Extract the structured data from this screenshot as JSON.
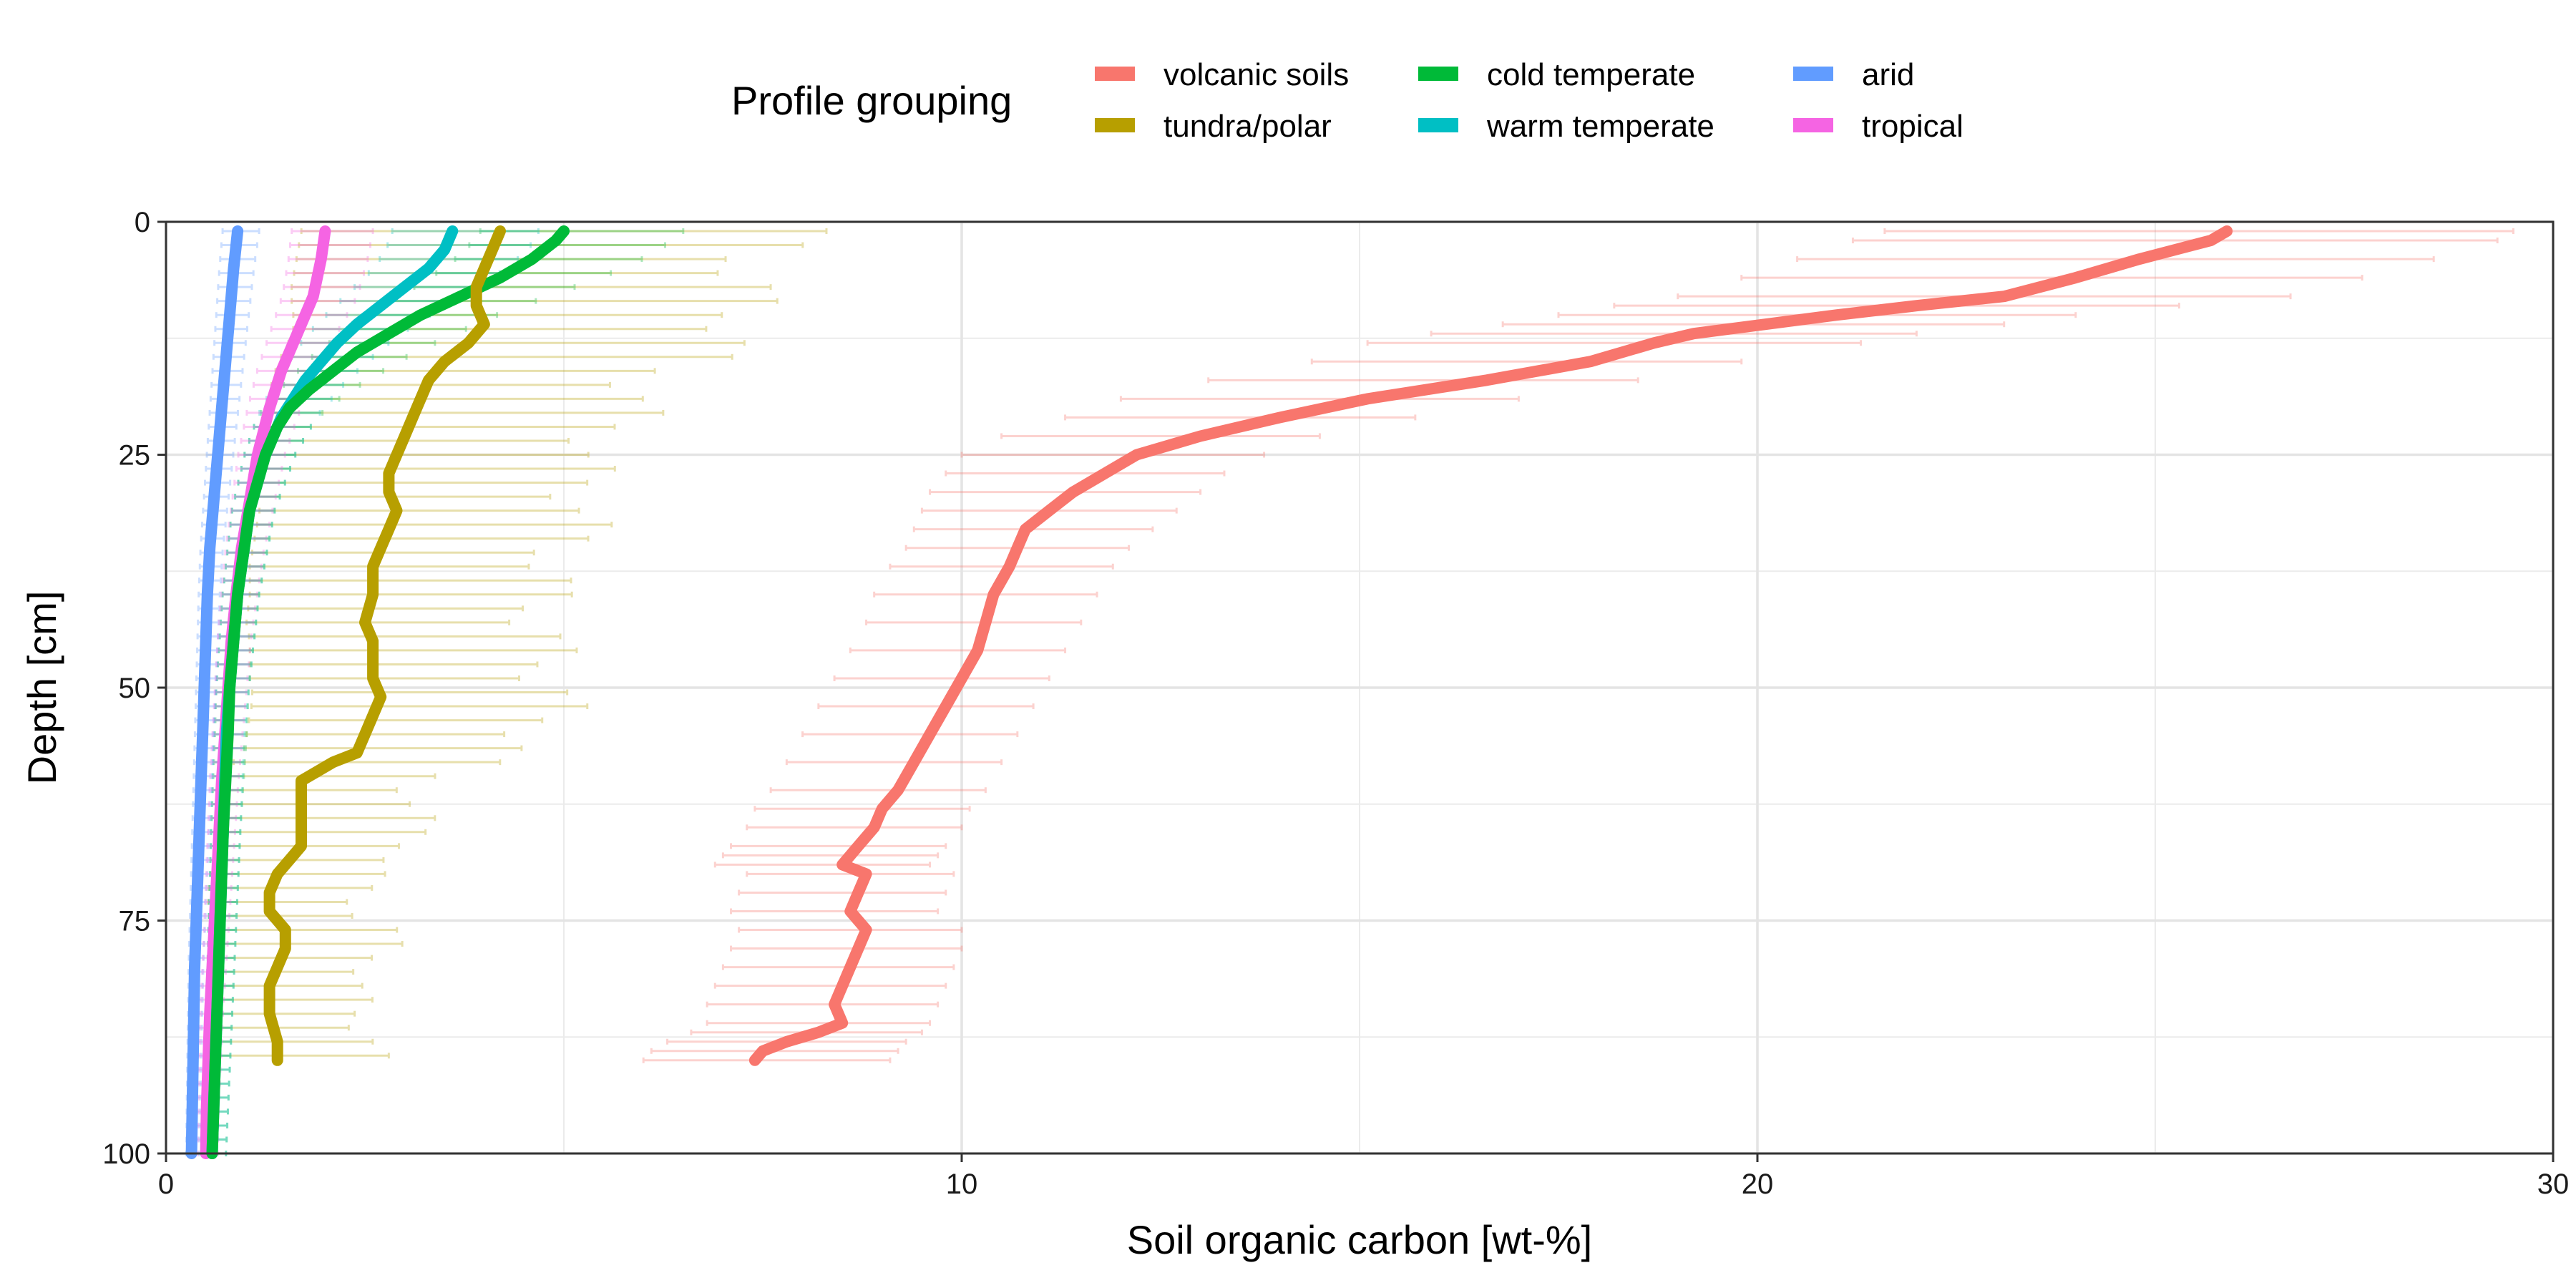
{
  "chart_data": {
    "type": "line",
    "xlabel": "Soil organic carbon [wt-%]",
    "ylabel": "Depth [cm]",
    "xlim": [
      0,
      30
    ],
    "ylim": [
      0,
      100
    ],
    "y_reversed": true,
    "xticks": [
      0,
      10,
      20,
      30
    ],
    "yticks": [
      0,
      25,
      50,
      75,
      100
    ],
    "grid": true,
    "legend": {
      "title": "Profile grouping",
      "position": "top",
      "entries": [
        "volcanic soils",
        "tundra/polar",
        "cold temperate",
        "warm temperate",
        "arid",
        "tropical"
      ]
    },
    "series": [
      {
        "name": "volcanic soils",
        "color": "#F8766D",
        "depth": [
          1,
          2,
          4,
          6,
          8,
          9,
          10,
          11,
          12,
          13,
          15,
          17,
          19,
          21,
          23,
          25,
          27,
          29,
          31,
          33,
          35,
          37,
          40,
          43,
          46,
          49,
          52,
          55,
          58,
          61,
          63,
          65,
          67,
          68,
          69,
          70,
          72,
          74,
          76,
          78,
          80,
          82,
          84,
          86,
          87,
          88,
          89,
          90
        ],
        "values": [
          25.9,
          25.7,
          24.8,
          24.0,
          23.1,
          22.0,
          21.0,
          20.1,
          19.2,
          18.7,
          17.9,
          16.6,
          15.1,
          14.0,
          13.0,
          12.2,
          11.8,
          11.4,
          11.1,
          10.8,
          10.7,
          10.6,
          10.4,
          10.3,
          10.2,
          10.0,
          9.8,
          9.6,
          9.4,
          9.2,
          9.0,
          8.9,
          8.7,
          8.6,
          8.5,
          8.8,
          8.7,
          8.6,
          8.8,
          8.7,
          8.6,
          8.5,
          8.4,
          8.5,
          8.2,
          7.8,
          7.5,
          7.4
        ],
        "err_low": [
          21.6,
          21.2,
          20.5,
          19.8,
          19.0,
          18.2,
          17.5,
          16.8,
          15.9,
          15.1,
          14.4,
          13.1,
          12.0,
          11.3,
          10.5,
          10.0,
          9.8,
          9.6,
          9.5,
          9.4,
          9.3,
          9.1,
          8.9,
          8.8,
          8.6,
          8.4,
          8.2,
          8.0,
          7.8,
          7.6,
          7.4,
          7.3,
          7.1,
          7.0,
          6.9,
          7.3,
          7.2,
          7.1,
          7.2,
          7.1,
          7.0,
          6.9,
          6.8,
          6.8,
          6.6,
          6.3,
          6.1,
          6.0
        ],
        "err_high": [
          29.5,
          29.3,
          28.5,
          27.6,
          26.7,
          25.3,
          24.0,
          23.1,
          22.0,
          21.3,
          19.8,
          18.5,
          17.0,
          15.7,
          14.5,
          13.8,
          13.3,
          13.0,
          12.7,
          12.4,
          12.1,
          11.9,
          11.7,
          11.5,
          11.3,
          11.1,
          10.9,
          10.7,
          10.5,
          10.3,
          10.1,
          10.0,
          9.8,
          9.7,
          9.6,
          9.9,
          9.8,
          9.7,
          10.0,
          10.0,
          9.9,
          9.8,
          9.7,
          9.6,
          9.5,
          9.3,
          9.2,
          9.1
        ]
      },
      {
        "name": "tundra/polar",
        "color": "#B79F00",
        "depth": [
          1,
          3,
          5,
          7,
          9,
          11,
          13,
          15,
          17,
          19,
          21,
          23,
          25,
          27,
          29,
          31,
          33,
          35,
          37,
          40,
          43,
          45,
          47,
          49,
          51,
          53,
          55,
          57,
          58,
          59,
          60,
          62,
          65,
          67,
          68,
          70,
          72,
          74,
          76,
          78,
          80,
          82,
          85,
          88,
          90
        ],
        "values": [
          4.2,
          4.1,
          4.0,
          3.9,
          3.9,
          4.0,
          3.8,
          3.5,
          3.3,
          3.2,
          3.1,
          3.0,
          2.9,
          2.8,
          2.8,
          2.9,
          2.8,
          2.7,
          2.6,
          2.6,
          2.5,
          2.6,
          2.6,
          2.6,
          2.7,
          2.6,
          2.5,
          2.4,
          2.1,
          1.9,
          1.7,
          1.7,
          1.7,
          1.7,
          1.6,
          1.4,
          1.3,
          1.3,
          1.5,
          1.5,
          1.4,
          1.3,
          1.3,
          1.4,
          1.4
        ]
      },
      {
        "name": "cold temperate",
        "color": "#00BA38",
        "depth": [
          1,
          2,
          4,
          6,
          8,
          10,
          12,
          14,
          16,
          18,
          20,
          22,
          25,
          28,
          31,
          34,
          37,
          40,
          45,
          50,
          55,
          60,
          65,
          70,
          75,
          80,
          85,
          90,
          95,
          100
        ],
        "values": [
          5.0,
          4.9,
          4.6,
          4.2,
          3.7,
          3.2,
          2.8,
          2.4,
          2.1,
          1.8,
          1.55,
          1.4,
          1.25,
          1.15,
          1.05,
          1.0,
          0.95,
          0.9,
          0.85,
          0.8,
          0.78,
          0.75,
          0.72,
          0.7,
          0.68,
          0.66,
          0.64,
          0.62,
          0.6,
          0.58
        ]
      },
      {
        "name": "warm temperate",
        "color": "#00BFC4",
        "depth": [
          1,
          3,
          5,
          7,
          9,
          11,
          13,
          15,
          17,
          19,
          21,
          23,
          25,
          28,
          31,
          34,
          37,
          40,
          45,
          50,
          55,
          60,
          65,
          70,
          75,
          80,
          85,
          90,
          95,
          100
        ],
        "values": [
          3.6,
          3.5,
          3.3,
          3.0,
          2.7,
          2.4,
          2.15,
          1.95,
          1.75,
          1.6,
          1.45,
          1.35,
          1.25,
          1.15,
          1.05,
          1.0,
          0.95,
          0.9,
          0.85,
          0.8,
          0.76,
          0.74,
          0.72,
          0.7,
          0.68,
          0.66,
          0.64,
          0.62,
          0.6,
          0.58
        ]
      },
      {
        "name": "arid",
        "color": "#619CFF",
        "depth": [
          1,
          5,
          10,
          15,
          20,
          25,
          30,
          35,
          40,
          45,
          50,
          55,
          60,
          65,
          70,
          75,
          80,
          85,
          90,
          95,
          100
        ],
        "values": [
          0.9,
          0.85,
          0.8,
          0.75,
          0.7,
          0.65,
          0.6,
          0.55,
          0.52,
          0.5,
          0.48,
          0.46,
          0.44,
          0.42,
          0.4,
          0.38,
          0.36,
          0.35,
          0.34,
          0.33,
          0.32
        ]
      },
      {
        "name": "tropical",
        "color": "#F564E3",
        "depth": [
          1,
          4,
          8,
          12,
          16,
          20,
          25,
          30,
          35,
          40,
          45,
          50,
          55,
          60,
          65,
          70,
          75,
          80,
          85,
          90,
          95,
          100
        ],
        "values": [
          2.0,
          1.95,
          1.85,
          1.65,
          1.45,
          1.3,
          1.15,
          1.05,
          0.95,
          0.88,
          0.82,
          0.78,
          0.74,
          0.7,
          0.67,
          0.64,
          0.61,
          0.58,
          0.55,
          0.53,
          0.51,
          0.5
        ]
      }
    ]
  }
}
